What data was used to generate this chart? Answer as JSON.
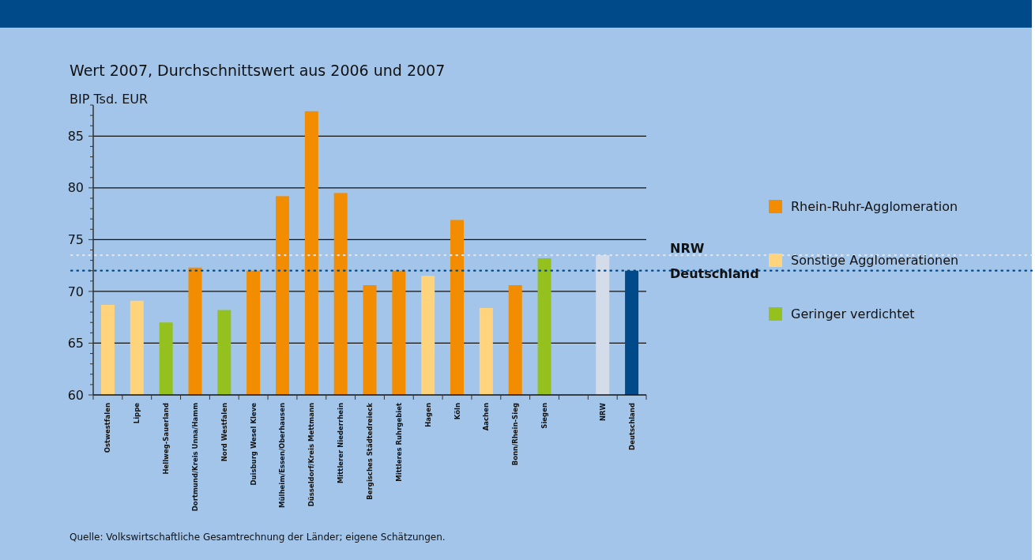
{
  "chart_data": {
    "type": "bar",
    "subtitle": "Wert 2007, Durchschnittswert aus 2006 und 2007",
    "ylabel": "BIP Tsd. EUR",
    "categories": [
      "Ostwestfalen",
      "Lippe",
      "Hellweg-Sauerland",
      "Dortmund/Kreis Unna/Hamm",
      "Nord Westfalen",
      "Duisburg Wesel Kleve",
      "Mülheim/Essen/Oberhausen",
      "Düsseldorf/Kreis Mettmann",
      "Mittlerer Niederrhein",
      "Bergisches Städtedreieck",
      "Mittleres Ruhrgebiet",
      "Hagen",
      "Köln",
      "Aachen",
      "Bonn/Rhein-Sieg",
      "Siegen",
      null,
      "NRW",
      "Deutschland"
    ],
    "series": [
      {
        "name": "Rhein-Ruhr-Agglomeration",
        "color": "#f28c00",
        "values": [
          null,
          null,
          null,
          72.3,
          null,
          72.0,
          79.2,
          87.4,
          79.5,
          70.6,
          72.0,
          null,
          76.9,
          null,
          70.6,
          null,
          null,
          null,
          null
        ]
      },
      {
        "name": "Sonstige Agglomerationen",
        "color": "#ffd47d",
        "values": [
          68.7,
          69.1,
          null,
          null,
          null,
          null,
          null,
          null,
          null,
          null,
          null,
          71.5,
          null,
          68.4,
          null,
          null,
          null,
          null,
          null
        ]
      },
      {
        "name": "Geringer verdichtet",
        "color": "#95c11f",
        "values": [
          null,
          null,
          67.0,
          null,
          68.2,
          null,
          null,
          null,
          null,
          null,
          null,
          null,
          null,
          null,
          null,
          73.2,
          null,
          null,
          null
        ]
      },
      {
        "colors": [
          null,
          null,
          null,
          null,
          null,
          null,
          null,
          null,
          null,
          null,
          null,
          null,
          null,
          null,
          null,
          null,
          null,
          "#d4dcea",
          "#004a8a"
        ],
        "values": [
          null,
          null,
          null,
          null,
          null,
          null,
          null,
          null,
          null,
          null,
          null,
          null,
          null,
          null,
          null,
          null,
          null,
          73.5,
          72.0
        ]
      }
    ],
    "ylim": [
      60,
      88
    ],
    "yticks": [
      60,
      {
        "value": 61,
        "label": null
      },
      {
        "value": 62,
        "label": null
      },
      {
        "value": 63,
        "label": null
      },
      {
        "value": 64,
        "label": null
      },
      65,
      {
        "value": 66,
        "label": null
      },
      {
        "value": 67,
        "label": null
      },
      {
        "value": 68,
        "label": null
      },
      {
        "value": 69,
        "label": null
      },
      70,
      {
        "value": 71,
        "label": null
      },
      {
        "value": 72,
        "label": null
      },
      {
        "value": 73,
        "label": null
      },
      {
        "value": 74,
        "label": null
      },
      75,
      {
        "value": 76,
        "label": null
      },
      {
        "value": 77,
        "label": null
      },
      {
        "value": 78,
        "label": null
      },
      {
        "value": 79,
        "label": null
      },
      80,
      {
        "value": 81,
        "label": null
      },
      {
        "value": 82,
        "label": null
      },
      {
        "value": 83,
        "label": null
      },
      {
        "value": 84,
        "label": null
      },
      85,
      {
        "value": 86,
        "label": null
      },
      {
        "value": 87,
        "label": null
      },
      {
        "value": 88,
        "label": null
      }
    ],
    "grid": "y",
    "legend": "right",
    "ref_lines": [
      {
        "axis": "y",
        "value": 73.5,
        "label": "NRW",
        "color": "#dfe6ee",
        "line_style": "dotted"
      },
      {
        "axis": "y",
        "value": 72.0,
        "label": "Deutschland",
        "color": "#004a8a",
        "line_style": "dotted"
      }
    ],
    "annotations": [
      "Quelle: Volkswirtschaftliche Gesamtrechnung der Länder; eigene Schätzungen."
    ]
  }
}
